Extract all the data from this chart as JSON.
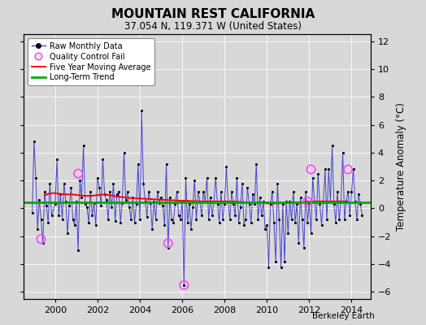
{
  "title": "MOUNTAIN REST CALIFORNIA",
  "subtitle": "37.054 N, 119.371 W (United States)",
  "ylabel": "Temperature Anomaly (°C)",
  "credit": "Berkeley Earth",
  "ylim": [
    -6.5,
    12.5
  ],
  "yticks": [
    -6,
    -4,
    -2,
    0,
    2,
    4,
    6,
    8,
    10,
    12
  ],
  "xlim": [
    1998.5,
    2014.9
  ],
  "xticks": [
    2000,
    2002,
    2004,
    2006,
    2008,
    2010,
    2012,
    2014
  ],
  "background_color": "#d8d8d8",
  "plot_bg_color": "#d8d8d8",
  "raw_color": "#4444cc",
  "dot_color": "#000000",
  "moving_avg_color": "#ff0000",
  "trend_color": "#00aa00",
  "qc_fail_color": "#ff44ff",
  "long_term_trend_value": 0.45,
  "months": [
    1998.917,
    1999.0,
    1999.083,
    1999.167,
    1999.25,
    1999.333,
    1999.417,
    1999.5,
    1999.583,
    1999.667,
    1999.75,
    1999.833,
    2000.0,
    2000.083,
    2000.167,
    2000.25,
    2000.333,
    2000.417,
    2000.5,
    2000.583,
    2000.667,
    2000.75,
    2000.833,
    2000.917,
    2001.0,
    2001.083,
    2001.167,
    2001.25,
    2001.333,
    2001.417,
    2001.5,
    2001.583,
    2001.667,
    2001.75,
    2001.833,
    2001.917,
    2002.0,
    2002.083,
    2002.167,
    2002.25,
    2002.333,
    2002.417,
    2002.5,
    2002.583,
    2002.667,
    2002.75,
    2002.833,
    2002.917,
    2003.0,
    2003.083,
    2003.167,
    2003.25,
    2003.333,
    2003.417,
    2003.5,
    2003.583,
    2003.667,
    2003.75,
    2003.833,
    2003.917,
    2004.0,
    2004.083,
    2004.167,
    2004.25,
    2004.333,
    2004.417,
    2004.5,
    2004.583,
    2004.667,
    2004.75,
    2004.833,
    2004.917,
    2005.0,
    2005.083,
    2005.167,
    2005.25,
    2005.333,
    2005.417,
    2005.5,
    2005.583,
    2005.667,
    2005.75,
    2005.833,
    2005.917,
    2006.0,
    2006.083,
    2006.167,
    2006.25,
    2006.333,
    2006.417,
    2006.5,
    2006.583,
    2006.667,
    2006.75,
    2006.833,
    2006.917,
    2007.0,
    2007.083,
    2007.167,
    2007.25,
    2007.333,
    2007.417,
    2007.5,
    2007.583,
    2007.667,
    2007.75,
    2007.833,
    2007.917,
    2008.0,
    2008.083,
    2008.167,
    2008.25,
    2008.333,
    2008.417,
    2008.5,
    2008.583,
    2008.667,
    2008.75,
    2008.833,
    2008.917,
    2009.0,
    2009.083,
    2009.167,
    2009.25,
    2009.333,
    2009.417,
    2009.5,
    2009.583,
    2009.667,
    2009.75,
    2009.833,
    2009.917,
    2010.0,
    2010.083,
    2010.167,
    2010.25,
    2010.333,
    2010.417,
    2010.5,
    2010.583,
    2010.667,
    2010.75,
    2010.833,
    2010.917,
    2011.0,
    2011.083,
    2011.167,
    2011.25,
    2011.333,
    2011.417,
    2011.5,
    2011.583,
    2011.667,
    2011.75,
    2011.833,
    2011.917,
    2012.0,
    2012.083,
    2012.167,
    2012.25,
    2012.333,
    2012.417,
    2012.5,
    2012.583,
    2012.667,
    2012.75,
    2012.833,
    2012.917,
    2013.0,
    2013.083,
    2013.167,
    2013.25,
    2013.333,
    2013.417,
    2013.5,
    2013.583,
    2013.667,
    2013.75,
    2013.833,
    2013.917,
    2014.0,
    2014.083,
    2014.167,
    2014.25,
    2014.333,
    2014.417,
    2014.5
  ],
  "values": [
    -0.3,
    4.8,
    2.2,
    -1.5,
    0.6,
    -0.8,
    -2.5,
    1.2,
    0.2,
    -1.0,
    1.8,
    -0.5,
    0.3,
    3.5,
    -0.5,
    1.0,
    -0.8,
    1.8,
    0.5,
    -1.8,
    0.2,
    1.5,
    -0.8,
    -1.2,
    0.5,
    -3.0,
    2.0,
    0.8,
    4.5,
    0.3,
    0.1,
    -1.0,
    1.2,
    -0.5,
    0.4,
    -1.2,
    2.2,
    1.5,
    0.2,
    3.5,
    1.0,
    0.6,
    -0.8,
    1.2,
    0.1,
    1.8,
    -0.9,
    1.0,
    1.2,
    -1.0,
    0.4,
    4.0,
    0.6,
    1.2,
    0.1,
    -0.8,
    0.8,
    -1.0,
    0.3,
    3.2,
    -0.8,
    7.0,
    1.8,
    0.5,
    -0.6,
    1.2,
    0.4,
    -1.5,
    0.5,
    -0.8,
    1.2,
    0.4,
    0.8,
    0.2,
    -1.2,
    3.2,
    -2.8,
    0.8,
    -0.8,
    -1.0,
    0.3,
    1.2,
    -0.5,
    -0.8,
    0.5,
    -5.5,
    2.2,
    -1.0,
    0.3,
    -1.5,
    0.1,
    2.0,
    -0.8,
    1.2,
    0.5,
    -0.5,
    1.2,
    0.5,
    2.2,
    -0.8,
    0.8,
    -0.5,
    0.5,
    2.2,
    0.3,
    -1.0,
    1.2,
    -0.8,
    0.3,
    3.0,
    0.5,
    -0.8,
    1.2,
    0.3,
    -0.5,
    2.2,
    -1.0,
    0.1,
    1.8,
    -1.2,
    -0.8,
    1.5,
    0.3,
    -1.0,
    1.0,
    0.3,
    3.2,
    -0.8,
    0.8,
    -0.5,
    0.5,
    -1.5,
    -1.2,
    -4.2,
    0.3,
    1.2,
    -1.0,
    -3.8,
    1.8,
    -0.8,
    -4.2,
    0.3,
    -3.8,
    0.5,
    -1.8,
    0.5,
    -0.8,
    1.2,
    -1.0,
    0.3,
    -2.5,
    0.8,
    -0.8,
    -2.8,
    1.2,
    -1.0,
    0.3,
    -1.8,
    2.2,
    0.5,
    -0.8,
    2.5,
    0.3,
    -1.2,
    0.5,
    2.8,
    -0.8,
    2.8,
    0.5,
    4.5,
    0.3,
    -1.0,
    1.2,
    -0.8,
    0.5,
    4.0,
    -0.8,
    0.5,
    1.2,
    -0.5,
    1.2,
    2.8,
    0.5,
    -0.8,
    1.0,
    0.3,
    -0.5
  ],
  "qc_fail_x": [
    1999.333,
    2001.083,
    2005.333,
    2006.083,
    2011.917,
    2012.083,
    2013.833
  ],
  "qc_fail_y": [
    -2.2,
    2.5,
    -2.5,
    -5.5,
    0.5,
    2.8,
    2.8
  ],
  "moving_avg_x": [
    1999.5,
    1999.7,
    1999.9,
    2000.2,
    2000.5,
    2000.8,
    2001.1,
    2001.4,
    2001.7,
    2002.0,
    2002.3,
    2002.6,
    2002.9,
    2003.2,
    2003.5,
    2003.8,
    2004.1,
    2004.4,
    2004.7,
    2005.0,
    2005.3,
    2005.6,
    2005.9,
    2006.2,
    2006.5,
    2006.8,
    2007.1,
    2007.4,
    2007.7,
    2008.0,
    2008.3,
    2008.6,
    2008.9,
    2009.2,
    2009.5,
    2009.8,
    2010.1,
    2010.4,
    2010.7,
    2011.0,
    2011.3,
    2011.6,
    2011.9,
    2012.2,
    2012.5,
    2012.8,
    2013.1,
    2013.4,
    2013.7
  ],
  "moving_avg_y": [
    0.95,
    1.05,
    1.1,
    1.05,
    1.0,
    1.0,
    0.95,
    0.9,
    0.9,
    0.95,
    1.0,
    0.95,
    0.85,
    0.8,
    0.75,
    0.72,
    0.7,
    0.68,
    0.65,
    0.62,
    0.6,
    0.58,
    0.55,
    0.55,
    0.52,
    0.5,
    0.5,
    0.5,
    0.5,
    0.5,
    0.5,
    0.48,
    0.45,
    0.42,
    0.4,
    0.38,
    0.35,
    0.35,
    0.38,
    0.4,
    0.42,
    0.45,
    0.48,
    0.5,
    0.5,
    0.5,
    0.5,
    0.5,
    0.5
  ]
}
